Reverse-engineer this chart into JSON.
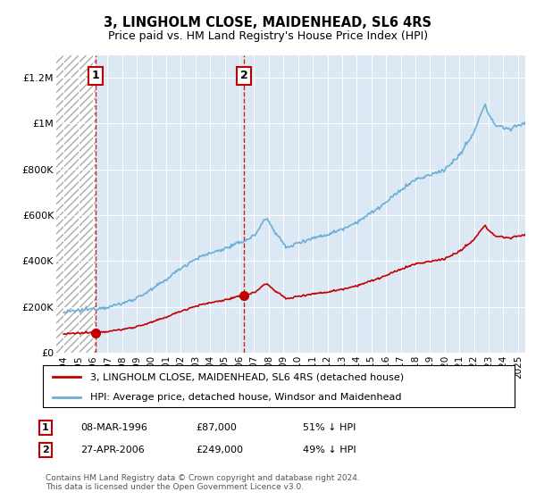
{
  "title": "3, LINGHOLM CLOSE, MAIDENHEAD, SL6 4RS",
  "subtitle": "Price paid vs. HM Land Registry's House Price Index (HPI)",
  "legend_line1": "3, LINGHOLM CLOSE, MAIDENHEAD, SL6 4RS (detached house)",
  "legend_line2": "HPI: Average price, detached house, Windsor and Maidenhead",
  "footnote": "Contains HM Land Registry data © Crown copyright and database right 2024.\nThis data is licensed under the Open Government Licence v3.0.",
  "sale1_date": 1996.19,
  "sale1_price": 87000,
  "sale1_label": "1",
  "sale1_text": "08-MAR-1996",
  "sale1_amount": "£87,000",
  "sale1_hpi": "51% ↓ HPI",
  "sale2_date": 2006.32,
  "sale2_price": 249000,
  "sale2_label": "2",
  "sale2_text": "27-APR-2006",
  "sale2_amount": "£249,000",
  "sale2_hpi": "49% ↓ HPI",
  "hpi_color": "#6baed6",
  "price_color": "#c00000",
  "sale_marker_color": "#c00000",
  "background_color": "#dce9f5",
  "xlim_left": 1993.5,
  "xlim_right": 2025.5,
  "ylim_bottom": 0,
  "ylim_top": 1300000,
  "yticks": [
    0,
    200000,
    400000,
    600000,
    800000,
    1000000,
    1200000
  ],
  "ytick_labels": [
    "£0",
    "£200K",
    "£400K",
    "£600K",
    "£800K",
    "£1M",
    "£1.2M"
  ],
  "xticks": [
    1994,
    1995,
    1996,
    1997,
    1998,
    1999,
    2000,
    2001,
    2002,
    2003,
    2004,
    2005,
    2006,
    2007,
    2008,
    2009,
    2010,
    2011,
    2012,
    2013,
    2014,
    2015,
    2016,
    2017,
    2018,
    2019,
    2020,
    2021,
    2022,
    2023,
    2024,
    2025
  ]
}
